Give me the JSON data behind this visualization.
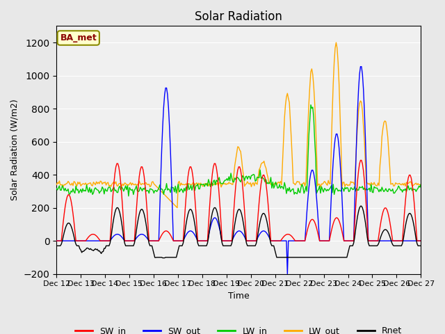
{
  "title": "Solar Radiation",
  "ylabel": "Solar Radiation (W/m2)",
  "xlabel": "Time",
  "annotation": "BA_met",
  "ylim": [
    -200,
    1300
  ],
  "yticks": [
    -200,
    0,
    200,
    400,
    600,
    800,
    1000,
    1200
  ],
  "xlim": [
    0,
    375
  ],
  "n_days": 15,
  "points_per_day": 25,
  "colors": {
    "SW_in": "#ff0000",
    "SW_out": "#0000ff",
    "LW_in": "#00cc00",
    "LW_out": "#ffaa00",
    "Rnet": "#000000"
  },
  "legend_labels": [
    "SW_in",
    "SW_out",
    "LW_in",
    "LW_out",
    "Rnet"
  ],
  "background_color": "#e8e8e8",
  "plot_bg": "#f0f0f0",
  "xtick_labels": [
    "Dec 12",
    "Dec 13",
    "Dec 14",
    "Dec 15",
    "Dec 16",
    "Dec 17",
    "Dec 18",
    "Dec 19",
    "Dec 20",
    "Dec 21",
    "Dec 22",
    "Dec 23",
    "Dec 24",
    "Dec 25",
    "Dec 26",
    "Dec 27"
  ],
  "grid_color": "#ffffff",
  "linewidth": 1.0
}
